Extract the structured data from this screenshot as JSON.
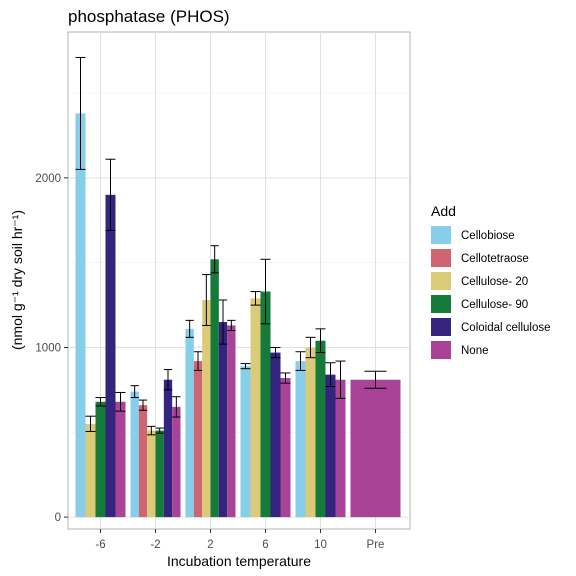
{
  "chart_data": {
    "type": "bar",
    "title": "phosphatase (PHOS)",
    "xlabel": "Incubation temperature",
    "ylabel": "(nmol g⁻¹ dry soil hr⁻¹)",
    "ylim": [
      -70,
      2860
    ],
    "yticks": [
      0,
      1000,
      2000
    ],
    "grid": true,
    "legend_position": "right",
    "legend_title": "Add",
    "categories": [
      "-6",
      "-2",
      "2",
      "6",
      "10",
      "Pre"
    ],
    "series": [
      {
        "name": "Cellobiose",
        "color": "#87CEEB",
        "values": [
          2380,
          740,
          1110,
          890,
          920,
          null
        ],
        "errors": [
          330,
          35,
          50,
          15,
          55,
          null
        ]
      },
      {
        "name": "Cellotetraose",
        "color": "#CD6672",
        "values": [
          null,
          660,
          920,
          null,
          null,
          null
        ],
        "errors": [
          null,
          30,
          55,
          null,
          null,
          null
        ]
      },
      {
        "name": "Cellulose- 20",
        "color": "#DBCB79",
        "values": [
          550,
          510,
          1280,
          1290,
          1000,
          null
        ],
        "errors": [
          45,
          25,
          150,
          40,
          60,
          null
        ]
      },
      {
        "name": "Cellulose- 90",
        "color": "#157A3A",
        "values": [
          680,
          510,
          1520,
          1330,
          1040,
          null
        ],
        "errors": [
          25,
          15,
          80,
          190,
          70,
          null
        ]
      },
      {
        "name": "Coloidal cellulose",
        "color": "#34237F",
        "values": [
          1900,
          810,
          1150,
          970,
          840,
          null
        ],
        "errors": [
          210,
          60,
          130,
          30,
          70,
          null
        ]
      },
      {
        "name": "None",
        "color": "#A84397",
        "values": [
          680,
          650,
          1130,
          820,
          810,
          810
        ],
        "errors": [
          55,
          60,
          30,
          30,
          110,
          50
        ]
      }
    ]
  }
}
